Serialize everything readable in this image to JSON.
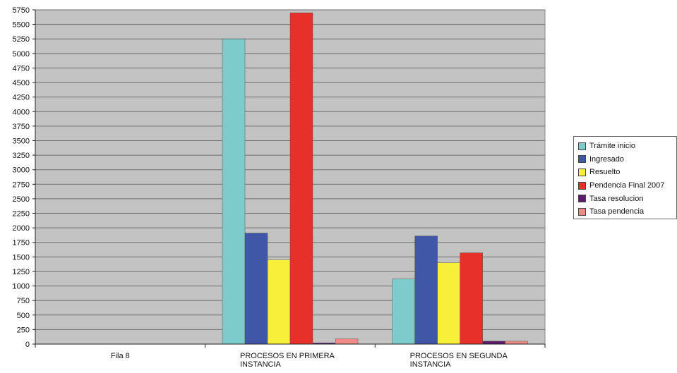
{
  "chart_data": {
    "type": "bar",
    "title": "",
    "xlabel": "",
    "ylabel": "",
    "ylim": [
      0,
      5750
    ],
    "ytick_step": 250,
    "grid": true,
    "legend_position": "right",
    "categories": [
      [
        "Fila 8"
      ],
      [
        "PROCESOS EN PRIMERA",
        "INSTANCIA"
      ],
      [
        "PROCESOS EN SEGUNDA",
        "INSTANCIA"
      ]
    ],
    "series": [
      {
        "name": "Trámite inicio",
        "color": "#7ecbcb",
        "values": [
          0,
          5250,
          1120
        ]
      },
      {
        "name": "Ingresado",
        "color": "#4057a8",
        "values": [
          0,
          1910,
          1860
        ]
      },
      {
        "name": "Resuelto",
        "color": "#f7ef3a",
        "values": [
          0,
          1450,
          1400
        ]
      },
      {
        "name": "Pendencia Final 2007",
        "color": "#e8302a",
        "values": [
          0,
          5700,
          1570
        ]
      },
      {
        "name": "Tasa resolucion",
        "color": "#5b1a6e",
        "values": [
          0,
          20,
          50
        ]
      },
      {
        "name": "Tasa pendencia",
        "color": "#ef8a86",
        "values": [
          0,
          90,
          50
        ]
      }
    ]
  }
}
